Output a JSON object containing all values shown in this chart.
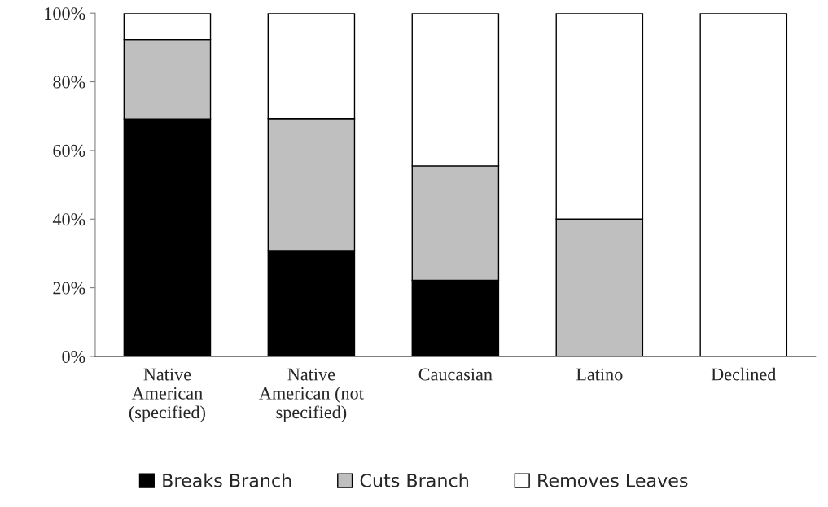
{
  "chart_data": {
    "type": "bar",
    "stacked": true,
    "categories": [
      "Native\nAmerican\n(specified)",
      "Native\nAmerican (not\nspecified)",
      "Caucasian",
      "Latino",
      "Declined"
    ],
    "series": [
      {
        "name": "Breaks Branch",
        "color": "#000000",
        "values": [
          69.2,
          30.8,
          22.2,
          0,
          0
        ]
      },
      {
        "name": "Cuts Branch",
        "color": "#bfbfbf",
        "values": [
          23.1,
          38.5,
          33.3,
          40,
          0
        ]
      },
      {
        "name": "Removes Leaves",
        "color": "#ffffff",
        "values": [
          7.7,
          30.7,
          44.5,
          60,
          100
        ]
      }
    ],
    "ylim": [
      0,
      100
    ],
    "yticks": [
      {
        "value": 0,
        "label": "0%"
      },
      {
        "value": 20,
        "label": "20%"
      },
      {
        "value": 40,
        "label": "40%"
      },
      {
        "value": 60,
        "label": "60%"
      },
      {
        "value": 80,
        "label": "80%"
      },
      {
        "value": 100,
        "label": "100%"
      }
    ],
    "grid": false,
    "legend": "bottom"
  }
}
